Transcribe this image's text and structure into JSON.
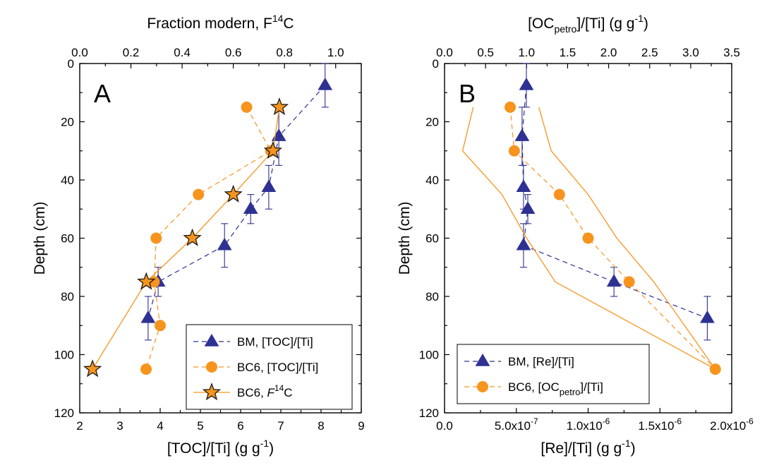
{
  "colors": {
    "bm": "#2e3192",
    "bc6": "#f7941d",
    "star_fill": "#f7941d",
    "star_stroke": "#1a1a1a",
    "bc6_line": "#f7941d"
  },
  "chart_data": [
    {
      "panel": "A",
      "type": "scatter",
      "panel_label": "A",
      "xlabel_prefix": "[TOC]/[Ti] (g g",
      "xlabel_sup": "-1",
      "xlabel_suffix": ")",
      "x2label_prefix": "Fraction modern, F",
      "x2label_sup": "14",
      "x2label_suffix": "C",
      "ylabel": "Depth (cm)",
      "xlim": [
        2,
        9
      ],
      "xticks": [
        2,
        3,
        4,
        5,
        6,
        7,
        8,
        9
      ],
      "xtick_labels": [
        "2",
        "3",
        "4",
        "5",
        "6",
        "7",
        "8",
        "9"
      ],
      "x2lim": [
        0.0,
        1.1
      ],
      "x2ticks": [
        0.0,
        0.2,
        0.4,
        0.6,
        0.8,
        1.0
      ],
      "x2tick_labels": [
        "0.0",
        "0.2",
        "0.4",
        "0.6",
        "0.8",
        "1.0"
      ],
      "ylim": [
        0,
        120
      ],
      "yticks": [
        0,
        20,
        40,
        60,
        80,
        100,
        120
      ],
      "ytick_labels": [
        "0",
        "20",
        "40",
        "60",
        "80",
        "100",
        "120"
      ],
      "legend_position": "bottom-right",
      "series": [
        {
          "key": "bm",
          "legend_label": "BM, [TOC]/[Ti]",
          "marker": "triangle",
          "axis": "x",
          "x": [
            8.1,
            6.95,
            6.7,
            6.25,
            5.6,
            3.95,
            3.7
          ],
          "y": [
            7.5,
            25,
            42.5,
            50,
            62.5,
            75,
            87.5
          ],
          "yerr": [
            7.5,
            10,
            7.5,
            5,
            7.5,
            5,
            7.5
          ]
        },
        {
          "key": "bc6",
          "legend_label": "BC6, [TOC]/[Ti]",
          "marker": "circle",
          "axis": "x",
          "x": [
            6.15,
            6.75,
            4.95,
            3.9,
            3.85,
            4.0,
            3.65
          ],
          "y": [
            15,
            30,
            45,
            60,
            75,
            90,
            105
          ]
        },
        {
          "key": "bc6f14",
          "legend_label_prefix": "BC6, ",
          "legend_label_italic": "F",
          "legend_label_sup": "14",
          "legend_label_suffix": "C",
          "marker": "star",
          "axis": "x2",
          "x": [
            0.78,
            0.755,
            0.6,
            0.44,
            0.26,
            0.05
          ],
          "y": [
            15,
            30,
            45,
            60,
            75,
            105
          ]
        }
      ]
    },
    {
      "panel": "B",
      "type": "scatter",
      "panel_label": "B",
      "xlabel_prefix": "[Re]/[Ti] (g g",
      "xlabel_sup": "-1",
      "xlabel_suffix": ")",
      "x2label_prefix": "[OC",
      "x2label_sub": "petro",
      "x2label_suffix": "]/[Ti] (g g",
      "x2label_sup": "-1",
      "x2label_end": ")",
      "ylabel": "Depth (cm)",
      "xlim": [
        0,
        2e-06
      ],
      "xticks": [
        0,
        5e-07,
        1e-06,
        1.5e-06,
        2e-06
      ],
      "xtick_labels": [
        {
          "base": "0.0",
          "sup": ""
        },
        {
          "base": "5.0x10",
          "sup": "-7"
        },
        {
          "base": "1.0x10",
          "sup": "-6"
        },
        {
          "base": "1.5x10",
          "sup": "-6"
        },
        {
          "base": "2.0x10",
          "sup": "-6"
        }
      ],
      "x2lim": [
        0,
        3.5
      ],
      "x2ticks": [
        0.0,
        0.5,
        1.0,
        1.5,
        2.0,
        2.5,
        3.0,
        3.5
      ],
      "x2tick_labels": [
        "0.0",
        "0.5",
        "1.0",
        "1.5",
        "2.0",
        "2.5",
        "3.0",
        "3.5"
      ],
      "ylim": [
        0,
        120
      ],
      "yticks": [
        0,
        20,
        40,
        60,
        80,
        100,
        120
      ],
      "ytick_labels": [
        "0",
        "20",
        "40",
        "60",
        "80",
        "100",
        "120"
      ],
      "legend_position": "bottom-left",
      "series": [
        {
          "key": "bm",
          "legend_label": "BM, [Re]/[Ti]",
          "marker": "triangle",
          "axis": "x",
          "x": [
            5.7e-07,
            5.4e-07,
            5.5e-07,
            5.8e-07,
            5.5e-07,
            1.18e-06,
            1.83e-06
          ],
          "y": [
            7.5,
            25,
            42.5,
            50,
            62.5,
            75,
            87.5
          ],
          "yerr": [
            7.5,
            10,
            7.5,
            5,
            7.5,
            5,
            7.5
          ]
        },
        {
          "key": "bc6",
          "legend_label_prefix": "BC6, [OC",
          "legend_label_sub": "petro",
          "legend_label_suffix": "]/[Ti]",
          "marker": "circle",
          "axis": "x2",
          "x": [
            0.8,
            0.85,
            1.4,
            1.75,
            2.25,
            3.3
          ],
          "y": [
            15,
            30,
            45,
            60,
            75,
            105
          ]
        },
        {
          "key": "bc6_envelope_left",
          "marker": "none",
          "axis": "x2",
          "x": [
            0.35,
            0.22,
            0.7,
            1.0,
            1.35,
            3.3
          ],
          "y": [
            15,
            30,
            45,
            60,
            75,
            105
          ]
        },
        {
          "key": "bc6_envelope_right",
          "marker": "none",
          "axis": "x2",
          "x": [
            1.15,
            1.3,
            1.75,
            2.1,
            2.55,
            3.3
          ],
          "y": [
            15,
            30,
            45,
            60,
            75,
            105
          ]
        }
      ]
    }
  ]
}
